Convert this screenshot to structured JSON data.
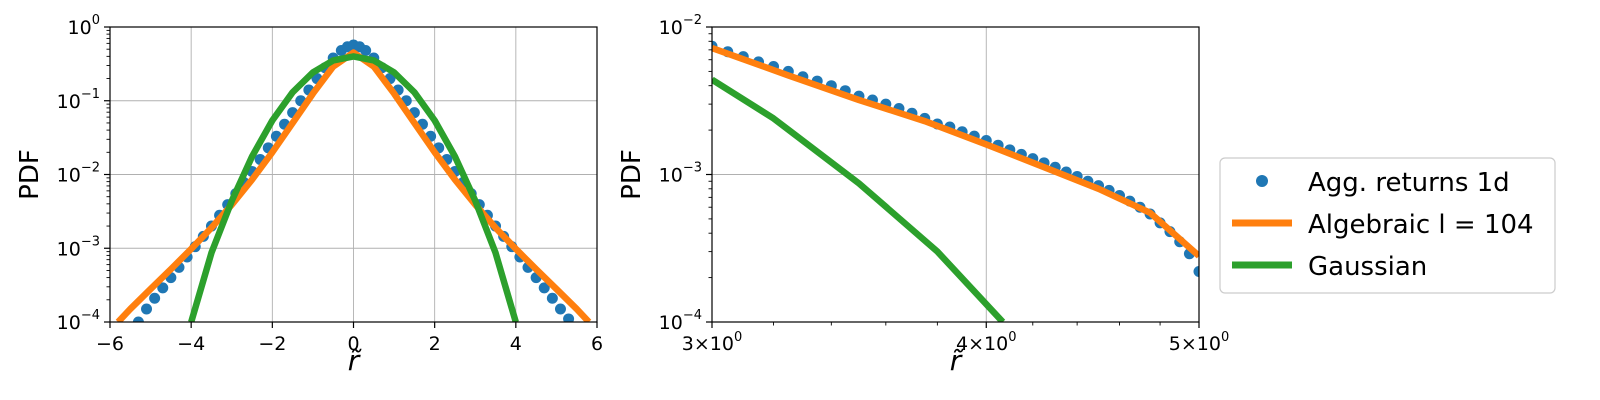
{
  "figure": {
    "legend_placement": "right",
    "legend_entries": [
      {
        "label": "Agg. returns 1d",
        "marker": "dot",
        "color": "#1f77b4"
      },
      {
        "label": "Algebraic l = 104",
        "marker": "line",
        "color": "#ff7f0e"
      },
      {
        "label": "Gaussian",
        "marker": "line",
        "color": "#2ca02c"
      }
    ]
  },
  "chart_data": [
    {
      "type": "line",
      "xlabel": "r̃",
      "ylabel": "PDF",
      "xscale": "linear",
      "yscale": "log",
      "xlim": [
        -6,
        6
      ],
      "ylim": [
        0.0001,
        1
      ],
      "grid": true,
      "x_ticks": [
        {
          "value": -6,
          "label": "−6"
        },
        {
          "value": -4,
          "label": "−4"
        },
        {
          "value": -2,
          "label": "−2"
        },
        {
          "value": 0,
          "label": "0"
        },
        {
          "value": 2,
          "label": "2"
        },
        {
          "value": 4,
          "label": "4"
        },
        {
          "value": 6,
          "label": "6"
        }
      ],
      "y_ticks": [
        {
          "value": 1,
          "base": "10",
          "exp": "0"
        },
        {
          "value": 0.1,
          "base": "10",
          "exp": "−1"
        },
        {
          "value": 0.01,
          "base": "10",
          "exp": "−2"
        },
        {
          "value": 0.001,
          "base": "10",
          "exp": "−3"
        },
        {
          "value": 0.0001,
          "base": "10",
          "exp": "−4"
        }
      ],
      "series": [
        {
          "name": "Agg. returns 1d",
          "style": "scatter",
          "color": "#1f77b4",
          "x": [
            -5.3,
            -5.1,
            -4.9,
            -4.7,
            -4.5,
            -4.3,
            -4.1,
            -3.9,
            -3.7,
            -3.5,
            -3.3,
            -3.1,
            -2.9,
            -2.7,
            -2.5,
            -2.3,
            -2.1,
            -1.9,
            -1.7,
            -1.5,
            -1.3,
            -1.1,
            -0.9,
            -0.7,
            -0.5,
            -0.3,
            -0.15,
            0,
            0.15,
            0.3,
            0.5,
            0.7,
            0.9,
            1.1,
            1.3,
            1.5,
            1.7,
            1.9,
            2.1,
            2.3,
            2.5,
            2.7,
            2.9,
            3.1,
            3.3,
            3.5,
            3.7,
            3.9,
            4.1,
            4.3,
            4.5,
            4.7,
            4.9,
            5.1,
            5.3
          ],
          "y": [
            0.0001,
            0.00015,
            0.00021,
            0.00029,
            0.0004,
            0.00055,
            0.00076,
            0.00105,
            0.00145,
            0.002,
            0.0028,
            0.0039,
            0.0055,
            0.0078,
            0.011,
            0.016,
            0.023,
            0.033,
            0.048,
            0.069,
            0.1,
            0.14,
            0.2,
            0.28,
            0.38,
            0.48,
            0.54,
            0.57,
            0.54,
            0.48,
            0.38,
            0.28,
            0.2,
            0.14,
            0.1,
            0.069,
            0.048,
            0.033,
            0.023,
            0.016,
            0.011,
            0.0078,
            0.0055,
            0.0039,
            0.0028,
            0.002,
            0.00145,
            0.00105,
            0.00076,
            0.00055,
            0.0004,
            0.00029,
            0.00021,
            0.00015,
            0.00011
          ]
        },
        {
          "name": "Algebraic l = 104",
          "style": "line",
          "color": "#ff7f0e",
          "x": [
            -5.8,
            -5.5,
            -5.0,
            -4.5,
            -4.0,
            -3.5,
            -3.0,
            -2.5,
            -2.0,
            -1.5,
            -1.0,
            -0.5,
            0,
            0.5,
            1.0,
            1.5,
            2.0,
            2.5,
            3.0,
            3.5,
            4.0,
            4.5,
            5.0,
            5.5,
            5.8
          ],
          "y": [
            0.0001,
            0.00015,
            0.00028,
            0.00052,
            0.00098,
            0.0019,
            0.0039,
            0.0085,
            0.02,
            0.05,
            0.125,
            0.29,
            0.45,
            0.29,
            0.125,
            0.05,
            0.02,
            0.0085,
            0.0039,
            0.0019,
            0.00098,
            0.00052,
            0.00028,
            0.00015,
            0.0001
          ]
        },
        {
          "name": "Gaussian",
          "style": "line",
          "color": "#2ca02c",
          "x": [
            -4.0,
            -3.5,
            -3.0,
            -2.5,
            -2.0,
            -1.5,
            -1.0,
            -0.5,
            0,
            0.5,
            1.0,
            1.5,
            2.0,
            2.5,
            3.0,
            3.5,
            4.0
          ],
          "y": [
            0.0001,
            0.00087,
            0.0044,
            0.0175,
            0.054,
            0.13,
            0.242,
            0.352,
            0.399,
            0.352,
            0.242,
            0.13,
            0.054,
            0.0175,
            0.0044,
            0.00087,
            0.0001
          ]
        }
      ]
    },
    {
      "type": "line",
      "xlabel": "r̃",
      "ylabel": "PDF",
      "xscale": "log",
      "yscale": "log",
      "xlim": [
        3,
        5
      ],
      "ylim": [
        0.0001,
        0.01
      ],
      "grid": true,
      "x_ticks": [
        {
          "value": 3,
          "mant": "3",
          "base": "10",
          "exp": "0"
        },
        {
          "value": 4,
          "mant": "4",
          "base": "10",
          "exp": "0"
        },
        {
          "value": 5,
          "mant": "5",
          "base": "10",
          "exp": "0"
        }
      ],
      "y_ticks": [
        {
          "value": 0.01,
          "base": "10",
          "exp": "−2"
        },
        {
          "value": 0.001,
          "base": "10",
          "exp": "−3"
        },
        {
          "value": 0.0001,
          "base": "10",
          "exp": "−4"
        }
      ],
      "series": [
        {
          "name": "Agg. returns 1d",
          "style": "scatter",
          "color": "#1f77b4",
          "x": [
            3.0,
            3.05,
            3.1,
            3.15,
            3.2,
            3.25,
            3.3,
            3.35,
            3.4,
            3.45,
            3.5,
            3.55,
            3.6,
            3.65,
            3.7,
            3.75,
            3.8,
            3.85,
            3.9,
            3.95,
            4.0,
            4.05,
            4.1,
            4.15,
            4.2,
            4.25,
            4.3,
            4.35,
            4.4,
            4.45,
            4.5,
            4.55,
            4.6,
            4.65,
            4.7,
            4.75,
            4.8,
            4.85,
            4.9,
            4.95,
            5.0
          ],
          "y": [
            0.0074,
            0.0068,
            0.0063,
            0.0058,
            0.0054,
            0.005,
            0.0046,
            0.0043,
            0.004,
            0.0037,
            0.0034,
            0.0032,
            0.003,
            0.0028,
            0.0026,
            0.0024,
            0.0022,
            0.0021,
            0.00195,
            0.00182,
            0.0017,
            0.00158,
            0.00147,
            0.00137,
            0.00128,
            0.0012,
            0.00112,
            0.00104,
            0.00097,
            0.0009,
            0.00084,
            0.00078,
            0.00072,
            0.00066,
            0.0006,
            0.00054,
            0.00047,
            0.00041,
            0.00035,
            0.00029,
            0.00022
          ]
        },
        {
          "name": "Algebraic l = 104",
          "style": "line",
          "color": "#ff7f0e",
          "x": [
            3.0,
            3.25,
            3.5,
            3.75,
            4.0,
            4.25,
            4.5,
            4.75,
            5.0
          ],
          "y": [
            0.0072,
            0.0047,
            0.0032,
            0.0023,
            0.0016,
            0.00112,
            0.0008,
            0.00055,
            0.00028
          ]
        },
        {
          "name": "Gaussian",
          "style": "line",
          "color": "#2ca02c",
          "x": [
            3.0,
            3.2,
            3.5,
            3.8,
            4.07
          ],
          "y": [
            0.0044,
            0.0024,
            0.00087,
            0.0003,
            0.0001
          ]
        }
      ]
    }
  ]
}
